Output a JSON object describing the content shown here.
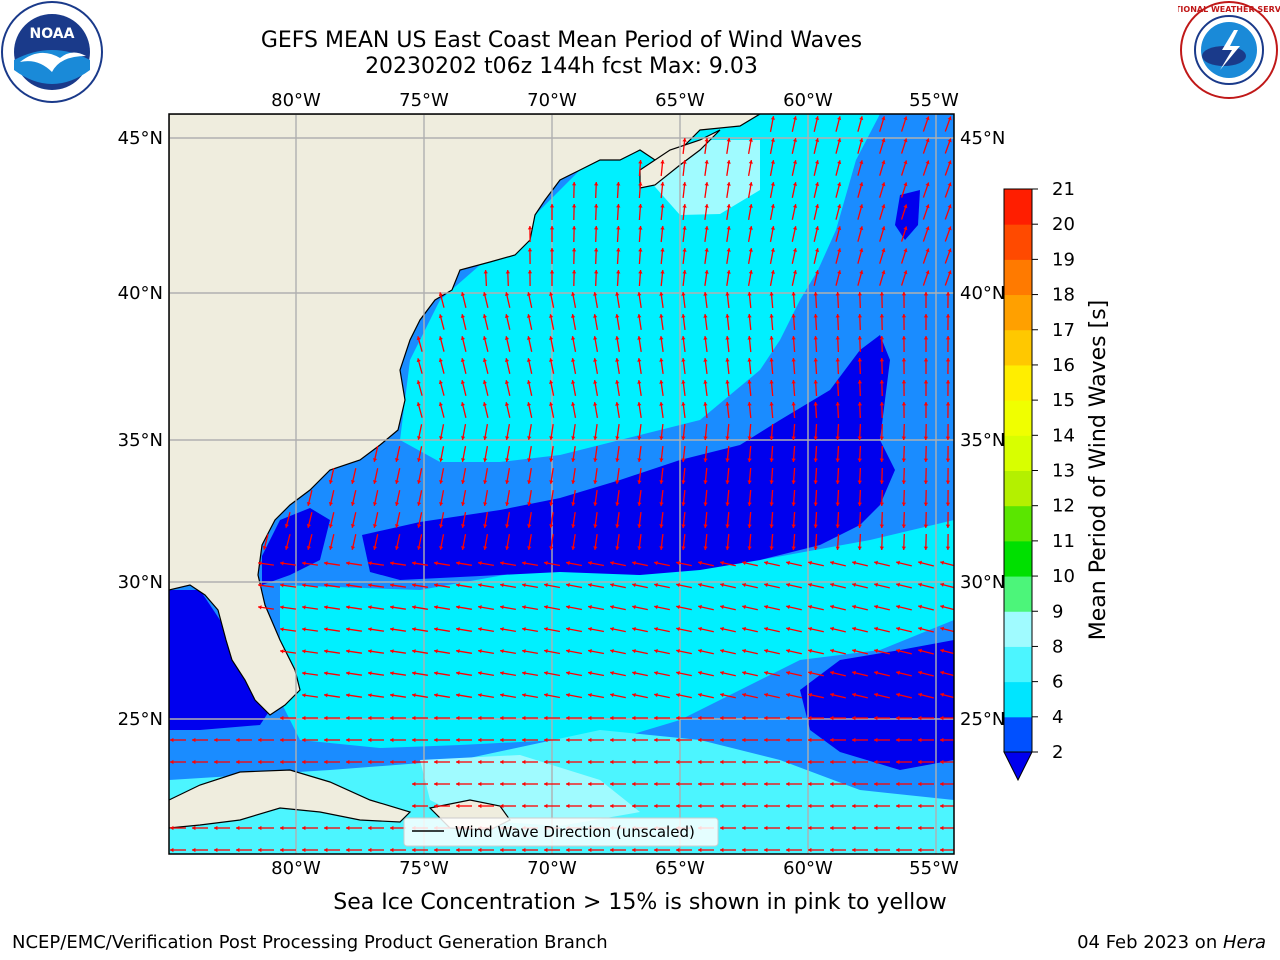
{
  "header": {
    "title_line1": "GEFS MEAN US East Coast Mean Period of Wind Waves",
    "title_line2": "20230202 t06z 144h fcst   Max: 9.03"
  },
  "logos": {
    "left": {
      "name": "noaa-logo",
      "text": "NOAA"
    },
    "right": {
      "name": "nws-logo",
      "text": "NATIONAL WEATHER SERVICE"
    }
  },
  "map": {
    "lon_labels": [
      "80°W",
      "75°W",
      "70°W",
      "65°W",
      "60°W",
      "55°W"
    ],
    "lat_labels": [
      "45°N",
      "40°N",
      "35°N",
      "30°N",
      "25°N"
    ],
    "legend_label": "Wind Wave Direction (unscaled)",
    "arrow_color": "#ff0000",
    "land_color": "#efedde"
  },
  "colorbar": {
    "label": "Mean Period of Wind Waves [s]",
    "ticks": [
      "2",
      "4",
      "6",
      "8",
      "9",
      "10",
      "11",
      "12",
      "13",
      "14",
      "15",
      "16",
      "17",
      "18",
      "19",
      "20",
      "21"
    ],
    "colors": [
      "#0050ff",
      "#00e5ff",
      "#4cf5ff",
      "#a0fbff",
      "#4cf57a",
      "#00e000",
      "#5ae600",
      "#b4f000",
      "#d8ff00",
      "#f0ff00",
      "#ffee00",
      "#ffc800",
      "#ffa000",
      "#ff7a00",
      "#ff4a00",
      "#ff1e00"
    ],
    "under_color": "#0000ee"
  },
  "footer": {
    "sea_ice_note": "Sea Ice Concentration > 15% is shown in pink to yellow",
    "left": "NCEP/EMC/Verification Post Processing Product Generation Branch",
    "right_date": "04 Feb 2023 on ",
    "right_host": "Hera"
  }
}
